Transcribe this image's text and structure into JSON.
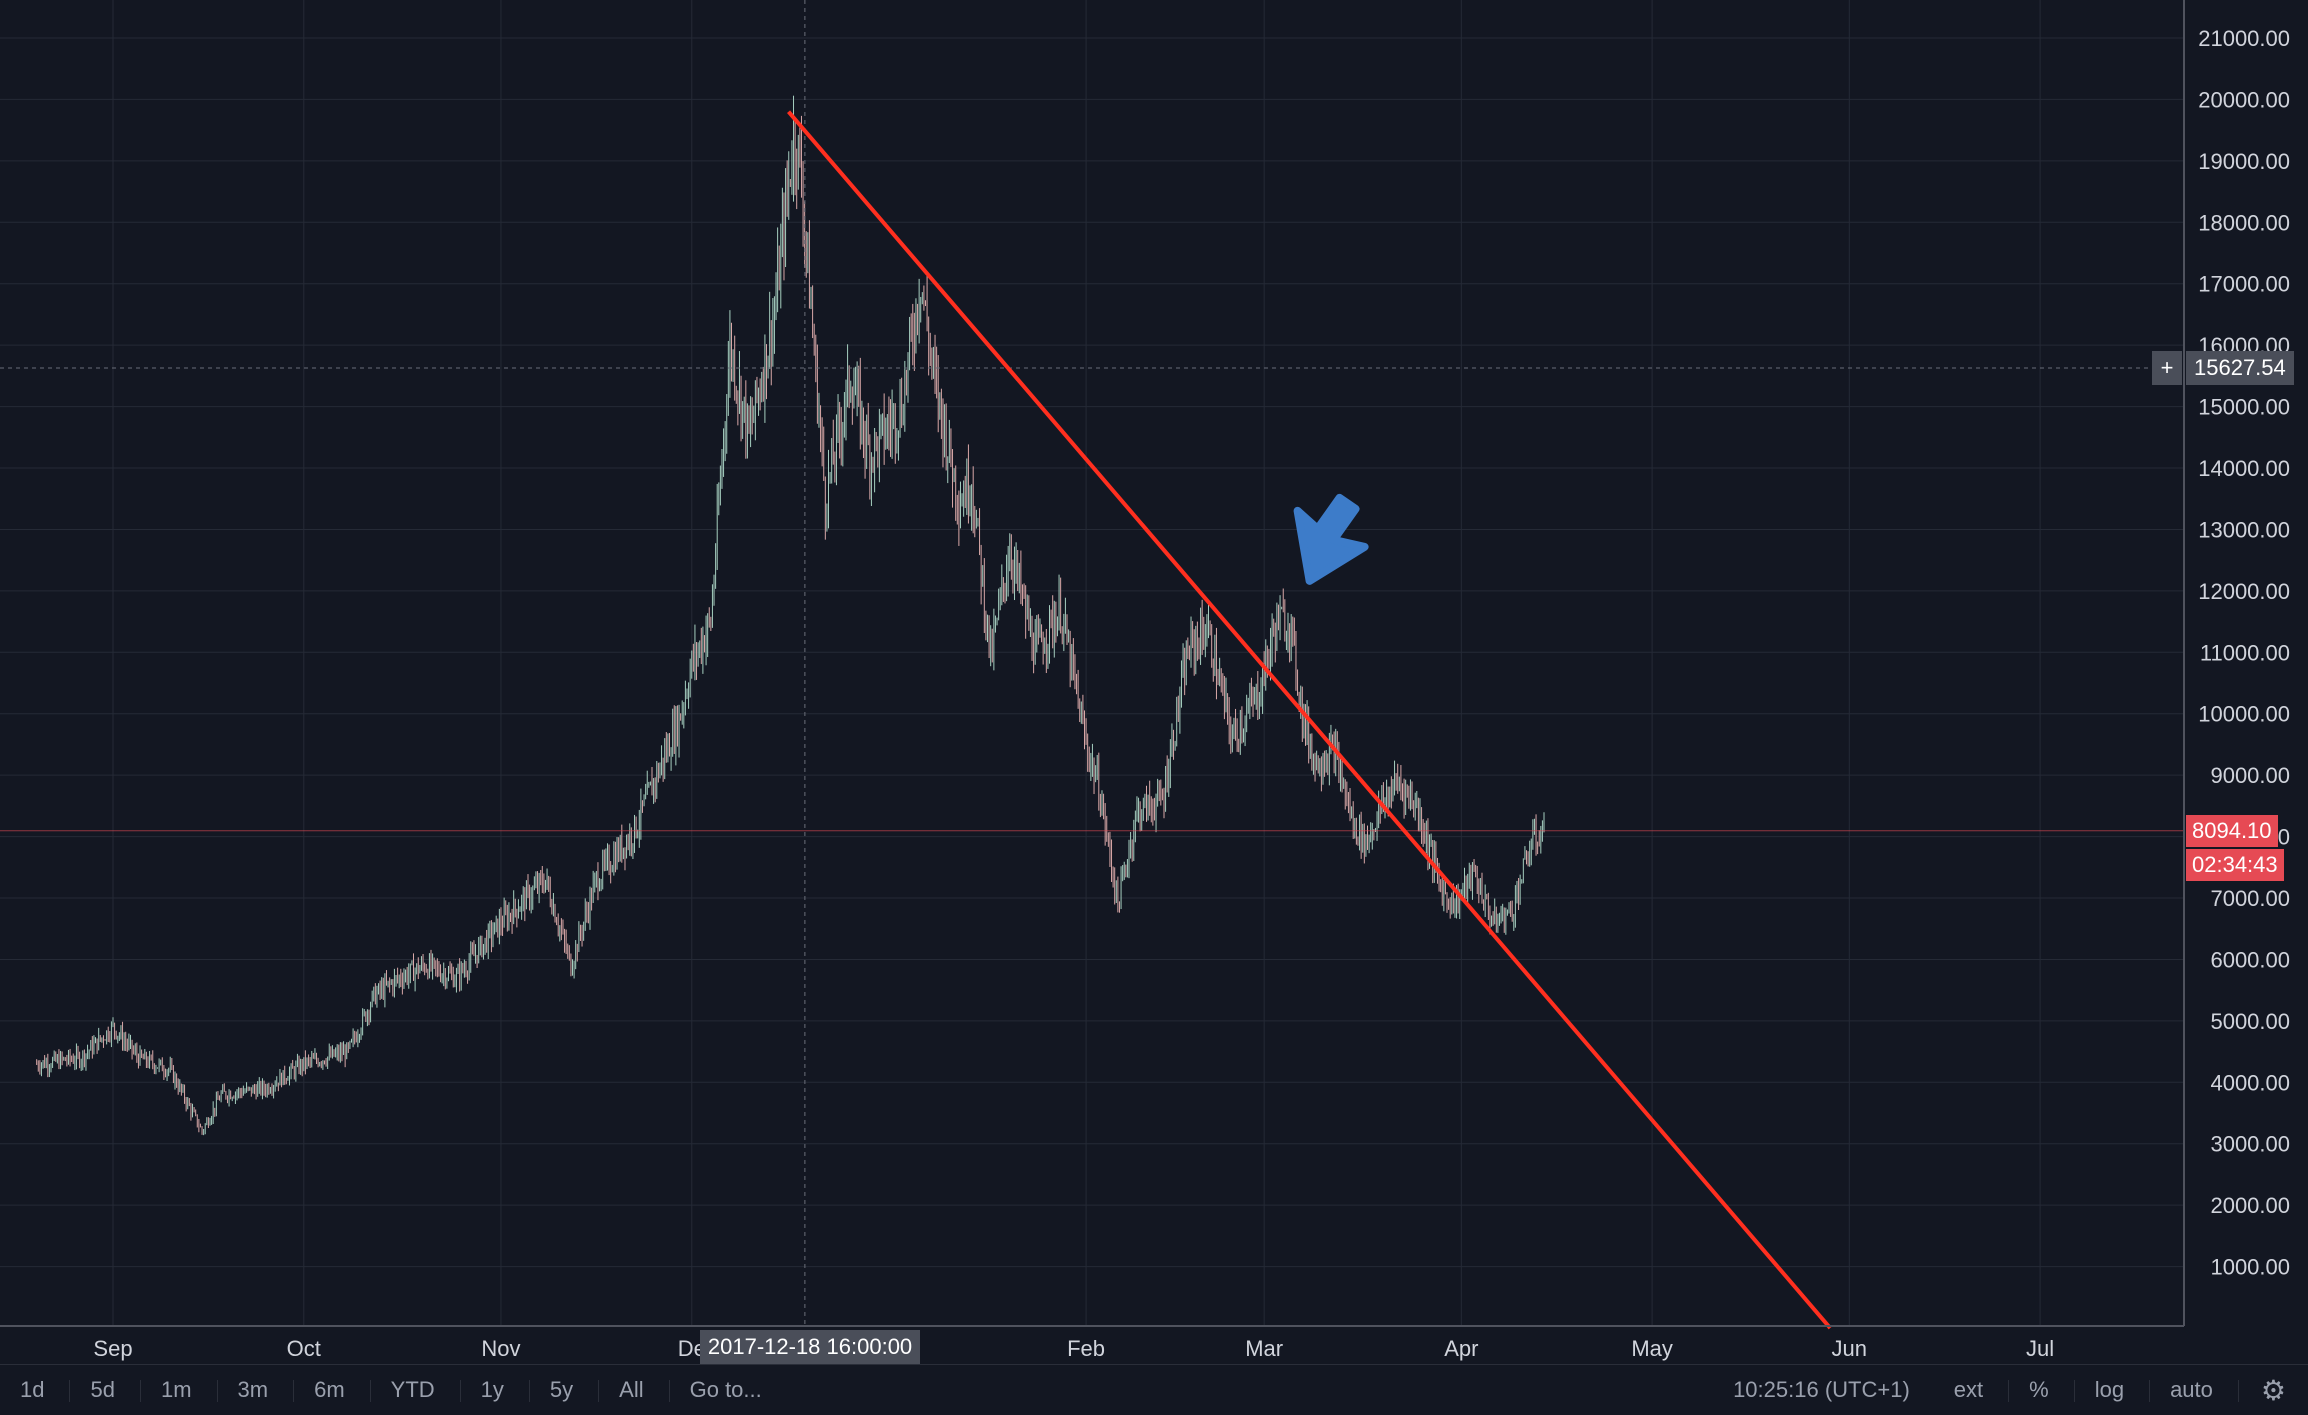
{
  "chart_data": {
    "type": "candlestick",
    "instrument_hint": "price chart with downtrend line",
    "price_axis": {
      "ticks": [
        "21000.00",
        "20000.00",
        "19000.00",
        "18000.00",
        "17000.00",
        "16000.00",
        "15000.00",
        "14000.00",
        "13000.00",
        "12000.00",
        "11000.00",
        "10000.00",
        "9000.00",
        "8000.00",
        "7000.00",
        "6000.00",
        "5000.00",
        "4000.00",
        "3000.00",
        "2000.00",
        "1000.00"
      ],
      "tick_values": [
        21000,
        20000,
        19000,
        18000,
        17000,
        16000,
        15000,
        14000,
        13000,
        12000,
        11000,
        10000,
        9000,
        8000,
        7000,
        6000,
        5000,
        4000,
        3000,
        2000,
        1000
      ],
      "ylim": [
        0,
        21500
      ]
    },
    "time_axis": {
      "labels": [
        "Sep",
        "Oct",
        "Nov",
        "De",
        "Feb",
        "Mar",
        "Apr",
        "May",
        "Jun",
        "Jul"
      ],
      "dates": [
        "2017-09-01",
        "2017-10-01",
        "2017-11-01",
        "2017-12-01",
        "2018-02-01",
        "2018-03-01",
        "2018-04-01",
        "2018-05-01",
        "2018-06-01",
        "2018-07-01"
      ],
      "xlim": [
        "2017-08-20",
        "2018-07-25"
      ]
    },
    "series": [
      {
        "values_approx": [
          [
            "2017-08-20",
            4300
          ],
          [
            "2017-08-27",
            4400
          ],
          [
            "2017-09-01",
            4900
          ],
          [
            "2017-09-05",
            4400
          ],
          [
            "2017-09-10",
            4200
          ],
          [
            "2017-09-15",
            3200
          ],
          [
            "2017-09-18",
            3800
          ],
          [
            "2017-09-25",
            3900
          ],
          [
            "2017-10-01",
            4300
          ],
          [
            "2017-10-08",
            4500
          ],
          [
            "2017-10-12",
            5400
          ],
          [
            "2017-10-16",
            5700
          ],
          [
            "2017-10-20",
            5900
          ],
          [
            "2017-10-25",
            5700
          ],
          [
            "2017-11-01",
            6600
          ],
          [
            "2017-11-06",
            7100
          ],
          [
            "2017-11-08",
            7300
          ],
          [
            "2017-11-12",
            5900
          ],
          [
            "2017-11-16",
            7300
          ],
          [
            "2017-11-22",
            8100
          ],
          [
            "2017-11-29",
            9900
          ],
          [
            "2017-12-01",
            10800
          ],
          [
            "2017-12-04",
            11500
          ],
          [
            "2017-12-07",
            16000
          ],
          [
            "2017-12-10",
            14500
          ],
          [
            "2017-12-14",
            16500
          ],
          [
            "2017-12-17",
            19400
          ],
          [
            "2017-12-18",
            19000
          ],
          [
            "2017-12-22",
            13500
          ],
          [
            "2017-12-26",
            15500
          ],
          [
            "2017-12-29",
            14200
          ],
          [
            "2018-01-03",
            15000
          ],
          [
            "2018-01-06",
            17100
          ],
          [
            "2018-01-08",
            15500
          ],
          [
            "2018-01-12",
            13500
          ],
          [
            "2018-01-14",
            13800
          ],
          [
            "2018-01-17",
            10900
          ],
          [
            "2018-01-20",
            12700
          ],
          [
            "2018-01-24",
            11000
          ],
          [
            "2018-01-28",
            11700
          ],
          [
            "2018-02-01",
            9500
          ],
          [
            "2018-02-03",
            8800
          ],
          [
            "2018-02-06",
            6900
          ],
          [
            "2018-02-09",
            8400
          ],
          [
            "2018-02-13",
            8600
          ],
          [
            "2018-02-17",
            11000
          ],
          [
            "2018-02-20",
            11400
          ],
          [
            "2018-02-24",
            9600
          ],
          [
            "2018-02-28",
            10300
          ],
          [
            "2018-03-03",
            11500
          ],
          [
            "2018-03-05",
            11500
          ],
          [
            "2018-03-07",
            10000
          ],
          [
            "2018-03-09",
            9200
          ],
          [
            "2018-03-12",
            9400
          ],
          [
            "2018-03-15",
            8200
          ],
          [
            "2018-03-17",
            7900
          ],
          [
            "2018-03-20",
            8600
          ],
          [
            "2018-03-22",
            8900
          ],
          [
            "2018-03-25",
            8500
          ],
          [
            "2018-03-29",
            7100
          ],
          [
            "2018-03-31",
            6900
          ],
          [
            "2018-04-03",
            7400
          ],
          [
            "2018-04-06",
            6600
          ],
          [
            "2018-04-09",
            6800
          ],
          [
            "2018-04-12",
            7900
          ],
          [
            "2018-04-14",
            8094
          ]
        ]
      }
    ],
    "trendline": {
      "start": [
        "2017-12-17",
        19800
      ],
      "end": [
        "2018-05-29",
        0
      ],
      "color": "#ff2f1f"
    },
    "last_price": "8094.10",
    "last_price_value": 8094.1,
    "countdown": "02:34:43",
    "crosshair": {
      "date_label": "2017-12-18 16:00:00",
      "date": "2017-12-18",
      "price_label": "15627.54",
      "price_value": 15627.54
    },
    "annotation_arrow": {
      "color": "#3d7cc9",
      "near_date": "2018-03-05",
      "near_price": 12000
    },
    "colors": {
      "background": "#131722",
      "grid": "#252a36",
      "candle_up": "#a6cfc0",
      "candle_down": "#d9a8a8",
      "last_price_tag": "#e64a54",
      "crosshair_tag": "#4a4e59"
    }
  },
  "toolbar": {
    "ranges": [
      "1d",
      "5d",
      "1m",
      "3m",
      "6m",
      "YTD",
      "1y",
      "5y",
      "All"
    ],
    "goto": "Go to...",
    "clock": "10:25:16",
    "timezone": "(UTC+1)",
    "ext": "ext",
    "percent": "%",
    "log": "log",
    "auto": "auto",
    "settings_icon": "gear-icon"
  }
}
